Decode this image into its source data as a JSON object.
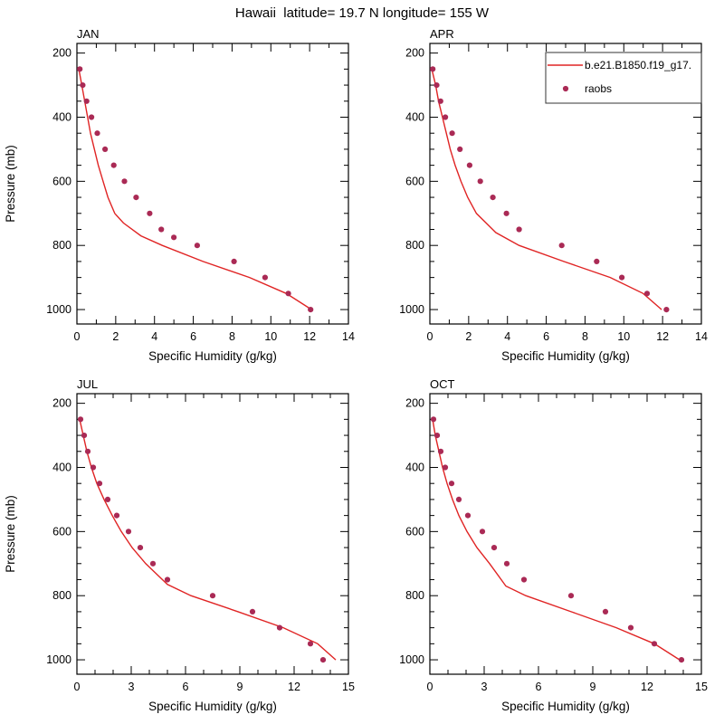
{
  "title": "Hawaii  latitude= 19.7 N longitude= 155 W",
  "colors": {
    "model_line": "#e02424",
    "raobs_dot": "#aa2a55",
    "axis": "#000000",
    "legend_border": "#333333"
  },
  "legend": {
    "model_label": "b.e21.B1850.f19_g17.",
    "raobs_label": "raobs",
    "position": "top-right of APR panel"
  },
  "chart_data": [
    {
      "type": "line",
      "title": "JAN",
      "xlabel": "Specific Humidity (g/kg)",
      "ylabel": "Pressure (mb)",
      "show_ylabel": true,
      "show_legend": false,
      "xlim": [
        0,
        14
      ],
      "xticks": [
        0,
        2,
        4,
        6,
        8,
        10,
        12,
        14
      ],
      "x_minor_step": 1,
      "ylim": [
        170,
        1045
      ],
      "y_inverted": true,
      "yticks": [
        200,
        400,
        600,
        800,
        1000
      ],
      "y_minor_step": 50,
      "series": [
        {
          "name": "b.e21.B1850.f19_g17.",
          "style": "line",
          "points": [
            [
              0.1,
              250
            ],
            [
              0.25,
              300
            ],
            [
              0.4,
              350
            ],
            [
              0.55,
              400
            ],
            [
              0.7,
              450
            ],
            [
              0.9,
              500
            ],
            [
              1.1,
              550
            ],
            [
              1.35,
              600
            ],
            [
              1.6,
              650
            ],
            [
              1.95,
              700
            ],
            [
              2.4,
              730
            ],
            [
              3.3,
              770
            ],
            [
              4.4,
              800
            ],
            [
              6.5,
              850
            ],
            [
              8.9,
              900
            ],
            [
              10.8,
              950
            ],
            [
              12.1,
              1000
            ]
          ]
        },
        {
          "name": "raobs",
          "style": "dots",
          "points": [
            [
              0.15,
              250
            ],
            [
              0.3,
              300
            ],
            [
              0.5,
              350
            ],
            [
              0.75,
              400
            ],
            [
              1.05,
              450
            ],
            [
              1.45,
              500
            ],
            [
              1.9,
              550
            ],
            [
              2.45,
              600
            ],
            [
              3.05,
              650
            ],
            [
              3.75,
              700
            ],
            [
              4.35,
              750
            ],
            [
              5.0,
              775
            ],
            [
              6.2,
              800
            ],
            [
              8.1,
              850
            ],
            [
              9.7,
              900
            ],
            [
              10.9,
              950
            ],
            [
              12.05,
              1000
            ]
          ]
        }
      ]
    },
    {
      "type": "line",
      "title": "APR",
      "xlabel": "Specific Humidity (g/kg)",
      "ylabel": "Pressure (mb)",
      "show_ylabel": false,
      "show_legend": true,
      "xlim": [
        0,
        14
      ],
      "xticks": [
        0,
        2,
        4,
        6,
        8,
        10,
        12,
        14
      ],
      "x_minor_step": 1,
      "ylim": [
        170,
        1045
      ],
      "y_inverted": true,
      "yticks": [
        200,
        400,
        600,
        800,
        1000
      ],
      "y_minor_step": 50,
      "series": [
        {
          "name": "b.e21.B1850.f19_g17.",
          "style": "line",
          "points": [
            [
              0.1,
              250
            ],
            [
              0.3,
              300
            ],
            [
              0.45,
              350
            ],
            [
              0.65,
              400
            ],
            [
              0.85,
              450
            ],
            [
              1.05,
              500
            ],
            [
              1.3,
              550
            ],
            [
              1.6,
              600
            ],
            [
              1.95,
              650
            ],
            [
              2.4,
              700
            ],
            [
              3.4,
              760
            ],
            [
              4.6,
              800
            ],
            [
              6.9,
              850
            ],
            [
              9.3,
              900
            ],
            [
              11.0,
              950
            ],
            [
              11.95,
              1000
            ]
          ]
        },
        {
          "name": "raobs",
          "style": "dots",
          "points": [
            [
              0.15,
              250
            ],
            [
              0.35,
              300
            ],
            [
              0.55,
              350
            ],
            [
              0.8,
              400
            ],
            [
              1.15,
              450
            ],
            [
              1.55,
              500
            ],
            [
              2.05,
              550
            ],
            [
              2.6,
              600
            ],
            [
              3.25,
              650
            ],
            [
              3.95,
              700
            ],
            [
              4.6,
              750
            ],
            [
              6.8,
              800
            ],
            [
              8.6,
              850
            ],
            [
              9.9,
              900
            ],
            [
              11.2,
              950
            ],
            [
              12.2,
              1000
            ]
          ]
        }
      ]
    },
    {
      "type": "line",
      "title": "JUL",
      "xlabel": "Specific Humidity (g/kg)",
      "ylabel": "Pressure (mb)",
      "show_ylabel": true,
      "show_legend": false,
      "xlim": [
        0,
        15
      ],
      "xticks": [
        0,
        3,
        6,
        9,
        12,
        15
      ],
      "x_minor_step": 1,
      "ylim": [
        170,
        1045
      ],
      "y_inverted": true,
      "yticks": [
        200,
        400,
        600,
        800,
        1000
      ],
      "y_minor_step": 50,
      "series": [
        {
          "name": "b.e21.B1850.f19_g17.",
          "style": "line",
          "points": [
            [
              0.15,
              250
            ],
            [
              0.35,
              300
            ],
            [
              0.55,
              350
            ],
            [
              0.8,
              400
            ],
            [
              1.1,
              450
            ],
            [
              1.5,
              500
            ],
            [
              1.95,
              550
            ],
            [
              2.45,
              600
            ],
            [
              3.05,
              650
            ],
            [
              3.8,
              700
            ],
            [
              5.0,
              765
            ],
            [
              6.3,
              800
            ],
            [
              8.9,
              850
            ],
            [
              11.4,
              900
            ],
            [
              13.3,
              950
            ],
            [
              14.3,
              1000
            ]
          ]
        },
        {
          "name": "raobs",
          "style": "dots",
          "points": [
            [
              0.2,
              250
            ],
            [
              0.4,
              300
            ],
            [
              0.6,
              350
            ],
            [
              0.9,
              400
            ],
            [
              1.25,
              450
            ],
            [
              1.7,
              500
            ],
            [
              2.2,
              550
            ],
            [
              2.85,
              600
            ],
            [
              3.5,
              650
            ],
            [
              4.2,
              700
            ],
            [
              5.0,
              750
            ],
            [
              7.5,
              800
            ],
            [
              9.7,
              850
            ],
            [
              11.2,
              900
            ],
            [
              12.9,
              950
            ],
            [
              13.6,
              1000
            ]
          ]
        }
      ]
    },
    {
      "type": "line",
      "title": "OCT",
      "xlabel": "Specific Humidity (g/kg)",
      "ylabel": "Pressure (mb)",
      "show_ylabel": false,
      "show_legend": false,
      "xlim": [
        0,
        15
      ],
      "xticks": [
        0,
        3,
        6,
        9,
        12,
        15
      ],
      "x_minor_step": 1,
      "ylim": [
        170,
        1045
      ],
      "y_inverted": true,
      "yticks": [
        200,
        400,
        600,
        800,
        1000
      ],
      "y_minor_step": 50,
      "series": [
        {
          "name": "b.e21.B1850.f19_g17.",
          "style": "line",
          "points": [
            [
              0.15,
              250
            ],
            [
              0.3,
              300
            ],
            [
              0.5,
              350
            ],
            [
              0.7,
              400
            ],
            [
              0.95,
              450
            ],
            [
              1.25,
              500
            ],
            [
              1.6,
              550
            ],
            [
              2.05,
              600
            ],
            [
              2.6,
              650
            ],
            [
              3.3,
              700
            ],
            [
              4.2,
              770
            ],
            [
              5.3,
              800
            ],
            [
              7.8,
              850
            ],
            [
              10.3,
              900
            ],
            [
              12.4,
              950
            ],
            [
              13.8,
              1000
            ]
          ]
        },
        {
          "name": "raobs",
          "style": "dots",
          "points": [
            [
              0.2,
              250
            ],
            [
              0.4,
              300
            ],
            [
              0.6,
              350
            ],
            [
              0.85,
              400
            ],
            [
              1.2,
              450
            ],
            [
              1.6,
              500
            ],
            [
              2.1,
              550
            ],
            [
              2.9,
              600
            ],
            [
              3.55,
              650
            ],
            [
              4.25,
              700
            ],
            [
              5.2,
              750
            ],
            [
              7.8,
              800
            ],
            [
              9.7,
              850
            ],
            [
              11.1,
              900
            ],
            [
              12.4,
              950
            ],
            [
              13.9,
              1000
            ]
          ]
        }
      ]
    }
  ]
}
